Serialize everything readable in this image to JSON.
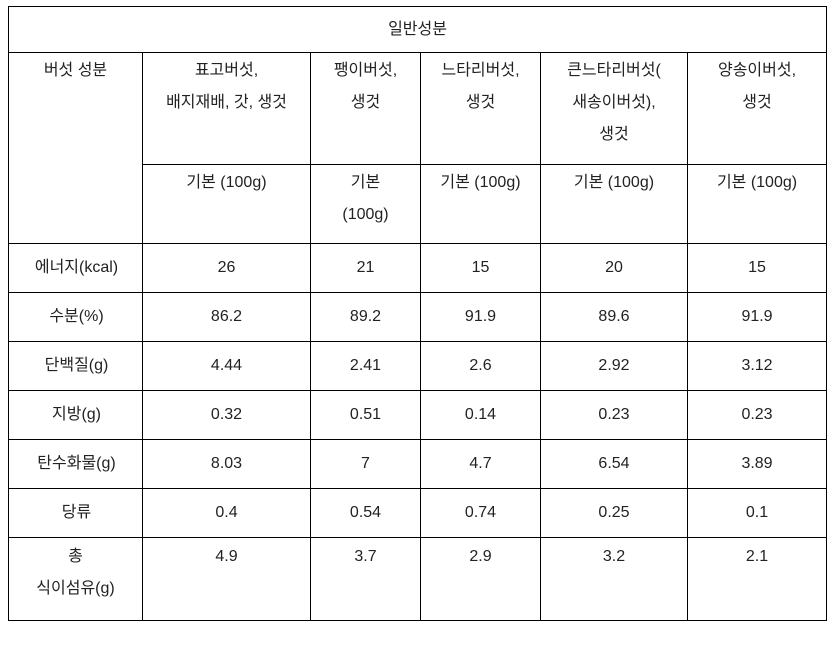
{
  "table": {
    "title": "일반성분",
    "row_header_label": "버섯 성분",
    "columns": [
      "표고버섯,\n배지재배, 갓, 생것",
      "팽이버섯,\n생것",
      "느타리버섯,\n생것",
      "큰느타리버섯(\n새송이버섯),\n생것",
      "양송이버섯,\n생것"
    ],
    "basis": [
      "기본 (100g)",
      "기본\n(100g)",
      "기본 (100g)",
      "기본 (100g)",
      "기본 (100g)"
    ],
    "rows": [
      {
        "label": "에너지(kcal)",
        "values": [
          "26",
          "21",
          "15",
          "20",
          "15"
        ]
      },
      {
        "label": "수분(%)",
        "values": [
          "86.2",
          "89.2",
          "91.9",
          "89.6",
          "91.9"
        ]
      },
      {
        "label": "단백질(g)",
        "values": [
          "4.44",
          "2.41",
          "2.6",
          "2.92",
          "3.12"
        ]
      },
      {
        "label": "지방(g)",
        "values": [
          "0.32",
          "0.51",
          "0.14",
          "0.23",
          "0.23"
        ]
      },
      {
        "label": "탄수화물(g)",
        "values": [
          "8.03",
          "7",
          "4.7",
          "6.54",
          "3.89"
        ]
      },
      {
        "label": "당류",
        "values": [
          "0.4",
          "0.54",
          "0.74",
          "0.25",
          "0.1"
        ]
      },
      {
        "label": "총\n식이섬유(g)",
        "values": [
          "4.9",
          "3.7",
          "2.9",
          "3.2",
          "2.1"
        ]
      }
    ]
  }
}
